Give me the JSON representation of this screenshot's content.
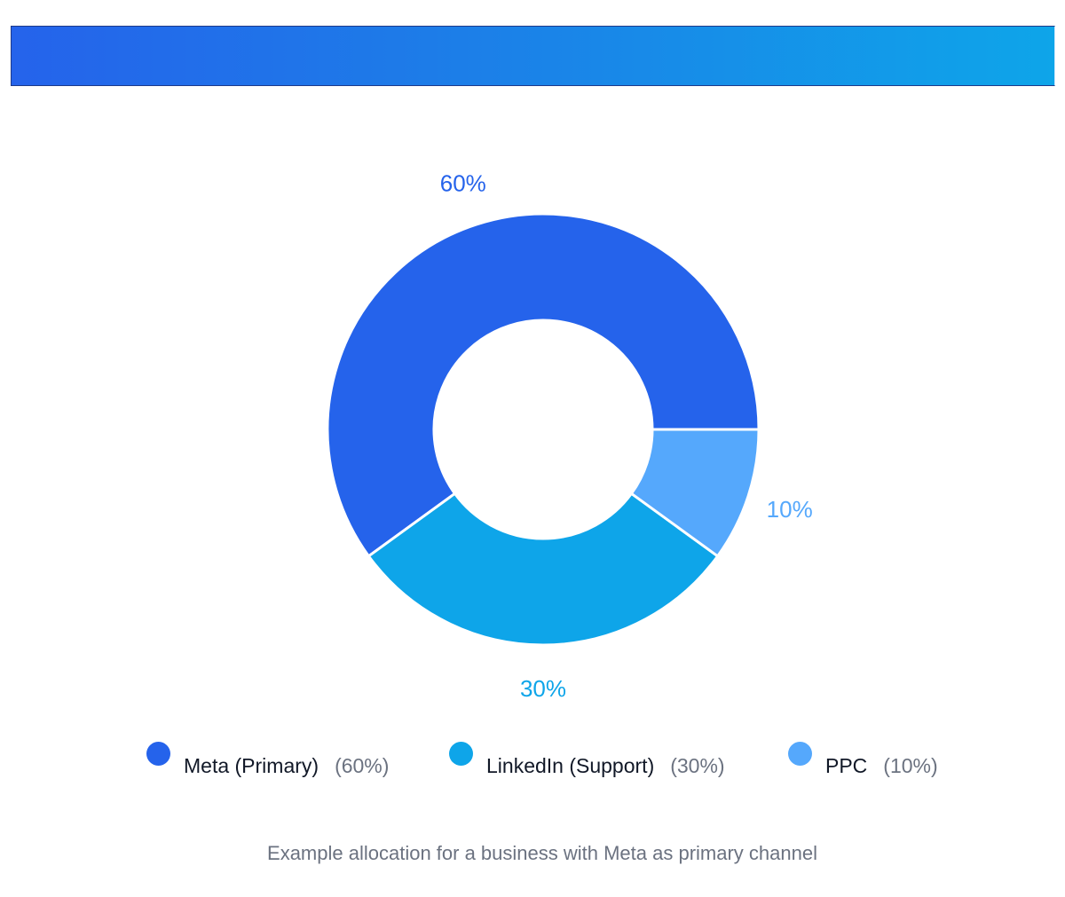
{
  "chart_data": {
    "type": "pie",
    "variant": "donut",
    "categories": [
      "Meta (Primary)",
      "LinkedIn (Support)",
      "PPC"
    ],
    "values": [
      60,
      30,
      10
    ],
    "value_labels": [
      "60%",
      "30%",
      "10%"
    ],
    "legend_pct": [
      "(60%)",
      "(30%)",
      "(10%)"
    ],
    "colors": [
      "#2563eb",
      "#0ea5e9",
      "#55a8fc"
    ],
    "legend_position": "bottom",
    "caption": "Example allocation for a business with Meta as primary channel"
  }
}
